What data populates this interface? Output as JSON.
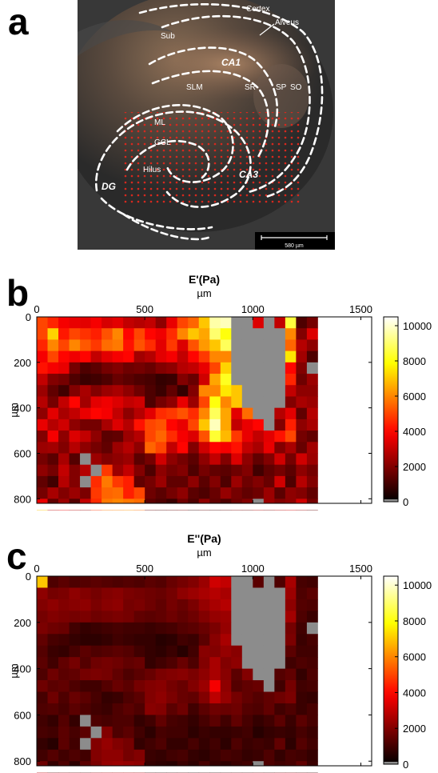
{
  "panel_a": {
    "letter": "a",
    "labels": {
      "cortex": "Cortex",
      "alveus": "Alveus",
      "sub": "Sub",
      "ca1": "CA1",
      "slm": "SLM",
      "sr": "SR",
      "sp": "SP",
      "so": "SO",
      "ml": "ML",
      "gcl": "GCL",
      "hilus": "Hilus",
      "dg": "DG",
      "ca3": "CA3"
    },
    "scale_bar": "580 µm",
    "colors": {
      "outline": "#ffffff",
      "grid_points": "#d8281e"
    }
  },
  "panel_b": {
    "letter": "b",
    "title": "E'(Pa)",
    "x_unit": "µm",
    "y_unit": "µm",
    "x_ticks": [
      "0",
      "500",
      "1000",
      "1500"
    ],
    "y_ticks": [
      "0",
      "200",
      "400",
      "600",
      "800"
    ],
    "colorbar_ticks": [
      "10000",
      "8000",
      "6000",
      "4000",
      "2000",
      "0"
    ]
  },
  "panel_c": {
    "letter": "c",
    "title": "E''(Pa)",
    "x_unit": "µm",
    "y_unit": "µm",
    "x_ticks": [
      "0",
      "500",
      "1000",
      "1500"
    ],
    "y_ticks": [
      "0",
      "200",
      "400",
      "600",
      "800"
    ],
    "colorbar_ticks": [
      "10000",
      "8000",
      "6000",
      "4000",
      "2000",
      "0"
    ]
  },
  "chart_data": [
    {
      "type": "heatmap",
      "title": "E'(Pa)",
      "xlabel": "µm",
      "ylabel": "µm",
      "xlim": [
        0,
        1550
      ],
      "ylim": [
        820,
        0
      ],
      "clim": [
        0,
        10500
      ],
      "colormap": "hot",
      "missing_color": "#8c8c8c",
      "x_step": 50,
      "y_step": 50,
      "missing_value": -1,
      "values": [
        [
          5000,
          4500,
          3800,
          3600,
          3500,
          3800,
          3300,
          3500,
          3000,
          2800,
          3000,
          2200,
          3600,
          5000,
          5500,
          7000,
          9600,
          9800,
          -1,
          -1,
          3400,
          -1,
          3000,
          8500,
          1200,
          1800
        ],
        [
          5000,
          7200,
          4300,
          5000,
          4700,
          4400,
          5200,
          6000,
          4000,
          5000,
          4000,
          3700,
          4600,
          6000,
          7000,
          6500,
          9000,
          8000,
          -1,
          -1,
          -1,
          -1,
          -1,
          6000,
          2000,
          3400
        ],
        [
          4500,
          6000,
          5000,
          6000,
          5300,
          4800,
          5600,
          5800,
          4200,
          5200,
          4600,
          3500,
          4800,
          3400,
          5200,
          6300,
          7000,
          8800,
          -1,
          -1,
          -1,
          -1,
          -1,
          5500,
          2800,
          2200
        ],
        [
          3800,
          5000,
          4000,
          3700,
          4000,
          3000,
          3500,
          3800,
          4000,
          2500,
          2800,
          3500,
          3800,
          3000,
          4000,
          4800,
          6000,
          6000,
          -1,
          -1,
          -1,
          -1,
          -1,
          7500,
          2500,
          1200
        ],
        [
          4200,
          3800,
          3600,
          1800,
          1200,
          1400,
          1800,
          2000,
          1700,
          1800,
          1600,
          2000,
          2200,
          2800,
          3000,
          3600,
          5000,
          7200,
          -1,
          -1,
          -1,
          -1,
          -1,
          4000,
          2000,
          -1
        ],
        [
          3000,
          2000,
          1800,
          1200,
          900,
          1000,
          1200,
          1600,
          1400,
          1200,
          1100,
          800,
          900,
          2000,
          1600,
          3200,
          6500,
          8200,
          -1,
          -1,
          -1,
          -1,
          -1,
          4500,
          1700,
          2400
        ],
        [
          2400,
          1500,
          1000,
          2000,
          2600,
          2000,
          2400,
          2600,
          2200,
          1700,
          1200,
          900,
          1500,
          800,
          2000,
          6000,
          6000,
          7500,
          7000,
          -1,
          -1,
          -1,
          -1,
          3000,
          2200,
          2200
        ],
        [
          2800,
          1800,
          3000,
          4000,
          2500,
          3500,
          3700,
          3400,
          3000,
          3200,
          1200,
          1800,
          2200,
          3600,
          2400,
          5000,
          8000,
          6000,
          7000,
          -1,
          -1,
          -1,
          -1,
          2000,
          2600,
          2400
        ],
        [
          2200,
          3500,
          2600,
          3000,
          3600,
          4000,
          3800,
          3000,
          2200,
          2800,
          3500,
          4600,
          4800,
          5200,
          4600,
          6000,
          8800,
          6500,
          3500,
          5600,
          -1,
          -1,
          2800,
          3500,
          1500,
          2800
        ],
        [
          3600,
          2800,
          3200,
          2200,
          1800,
          1800,
          2600,
          3400,
          2800,
          4200,
          5000,
          5200,
          4000,
          3600,
          5000,
          7000,
          9800,
          6500,
          3000,
          3600,
          4000,
          -1,
          2000,
          4400,
          2200,
          2600
        ],
        [
          2000,
          3800,
          2200,
          3400,
          3000,
          2200,
          1400,
          1500,
          2400,
          2800,
          5000,
          5500,
          4600,
          3800,
          3400,
          5200,
          8400,
          6800,
          4800,
          3600,
          3000,
          3500,
          4200,
          5000,
          1800,
          1500
        ],
        [
          2400,
          2500,
          2000,
          2800,
          2200,
          1800,
          1500,
          2400,
          2800,
          2200,
          5500,
          5000,
          3000,
          4000,
          2000,
          3200,
          4000,
          3800,
          4200,
          3000,
          2600,
          3600,
          2000,
          2600,
          1600,
          2500
        ],
        [
          1800,
          1400,
          2600,
          1300,
          -1,
          2400,
          2000,
          2200,
          2400,
          1400,
          1800,
          3200,
          2200,
          1800,
          1400,
          2200,
          3000,
          2000,
          3400,
          2200,
          1500,
          2000,
          3200,
          1800,
          3200,
          2400
        ],
        [
          2200,
          1800,
          3000,
          2000,
          2800,
          -1,
          4800,
          2400,
          3000,
          2000,
          1200,
          2200,
          1800,
          2000,
          1200,
          1800,
          1500,
          1400,
          1700,
          2000,
          1000,
          1500,
          1800,
          1400,
          2200,
          1800
        ],
        [
          1500,
          1000,
          2800,
          2000,
          -1,
          4600,
          5800,
          4800,
          4400,
          1500,
          1800,
          2400,
          1500,
          1500,
          2200,
          1400,
          2000,
          1200,
          2400,
          1700,
          2000,
          1600,
          3200,
          1200,
          2800,
          2000
        ],
        [
          1800,
          2600,
          2000,
          2400,
          1900,
          4800,
          5500,
          5600,
          4400,
          5000,
          1700,
          1400,
          1800,
          2200,
          1400,
          1200,
          1600,
          2300,
          1800,
          1500,
          1700,
          2400,
          1400,
          2200,
          2000,
          1500
        ],
        [
          3600,
          1500,
          2400,
          1300,
          3000,
          4600,
          5800,
          6000,
          5800,
          5600,
          1400,
          1200,
          900,
          1700,
          1200,
          2200,
          1500,
          1200,
          1700,
          2000,
          -1,
          2400,
          2000,
          2200,
          3200,
          1800
        ],
        [
          7000,
          3000,
          3600,
          2800,
          2400,
          4800,
          5800,
          6000,
          6200,
          5600,
          1600,
          1200,
          1500,
          1800,
          800,
          1500,
          1000,
          1400,
          1900,
          1700,
          2600,
          2000,
          2800,
          3200,
          2400,
          1600
        ],
        [
          9000,
          5200,
          6000,
          6200,
          3200,
          4200,
          3800,
          3700,
          3700,
          3500,
          2000,
          2200,
          1200,
          2200,
          1400,
          1600,
          -1,
          2500,
          3300,
          2800,
          3500,
          2300,
          3600,
          3500,
          2400,
          -1
        ]
      ]
    },
    {
      "type": "heatmap",
      "title": "E''(Pa)",
      "xlabel": "µm",
      "ylabel": "µm",
      "xlim": [
        0,
        1550
      ],
      "ylim": [
        820,
        0
      ],
      "clim": [
        0,
        10500
      ],
      "colormap": "hot",
      "missing_color": "#8c8c8c",
      "x_step": 50,
      "y_step": 50,
      "missing_value": -1,
      "values": [
        [
          7000,
          1200,
          1400,
          1200,
          1300,
          1400,
          1300,
          1200,
          1300,
          1200,
          1400,
          1300,
          1600,
          1800,
          2000,
          2400,
          3200,
          3000,
          -1,
          -1,
          1400,
          -1,
          1200,
          2600,
          1100,
          1000
        ],
        [
          2200,
          1800,
          1900,
          2200,
          2000,
          1800,
          2000,
          2100,
          1900,
          1800,
          1700,
          1600,
          1800,
          2200,
          2400,
          2600,
          2800,
          2600,
          -1,
          -1,
          -1,
          -1,
          -1,
          2400,
          1200,
          1400
        ],
        [
          2000,
          2200,
          2000,
          2100,
          2200,
          1900,
          2100,
          2200,
          1800,
          1900,
          1700,
          1500,
          1800,
          1600,
          1900,
          2300,
          2600,
          2800,
          -1,
          -1,
          -1,
          -1,
          -1,
          2200,
          1300,
          1200
        ],
        [
          1800,
          2000,
          1900,
          1800,
          1900,
          1700,
          1800,
          1900,
          1800,
          1500,
          1400,
          1500,
          1700,
          1500,
          1700,
          2000,
          2300,
          2400,
          -1,
          -1,
          -1,
          -1,
          -1,
          2500,
          1200,
          900
        ],
        [
          1900,
          1700,
          1600,
          1000,
          800,
          900,
          1000,
          1100,
          1000,
          1000,
          900,
          1000,
          1100,
          1300,
          1400,
          1600,
          1900,
          2300,
          -1,
          -1,
          -1,
          -1,
          -1,
          1800,
          1000,
          -1
        ],
        [
          1500,
          1100,
          1000,
          800,
          700,
          700,
          800,
          1000,
          900,
          800,
          800,
          600,
          700,
          1000,
          900,
          1400,
          2100,
          2600,
          -1,
          -1,
          -1,
          -1,
          -1,
          1900,
          900,
          1100
        ],
        [
          1300,
          900,
          800,
          1100,
          1400,
          1200,
          1300,
          1400,
          1300,
          1000,
          800,
          700,
          900,
          600,
          1000,
          2100,
          2000,
          2300,
          2100,
          -1,
          -1,
          -1,
          -1,
          1400,
          1000,
          1000
        ],
        [
          1400,
          1000,
          1500,
          1800,
          1300,
          1700,
          1800,
          1700,
          1500,
          1600,
          800,
          1000,
          1200,
          1600,
          1200,
          2000,
          2600,
          2000,
          2200,
          -1,
          -1,
          -1,
          -1,
          1000,
          1200,
          1100
        ],
        [
          1200,
          1700,
          1400,
          1500,
          1800,
          1900,
          1800,
          1500,
          1200,
          1400,
          1600,
          1900,
          2000,
          2100,
          1900,
          2200,
          2600,
          2100,
          1400,
          2000,
          -1,
          -1,
          1300,
          1500,
          800,
          1200
        ],
        [
          1700,
          1400,
          1500,
          1200,
          1000,
          1000,
          1300,
          1600,
          1400,
          1800,
          2000,
          2100,
          1800,
          1600,
          2000,
          2400,
          3800,
          2200,
          1300,
          1500,
          1600,
          -1,
          1000,
          1800,
          1000,
          1100
        ],
        [
          1100,
          1700,
          1200,
          1600,
          1400,
          1100,
          800,
          900,
          1200,
          1400,
          2000,
          2200,
          1900,
          1600,
          1500,
          2000,
          2900,
          2300,
          1800,
          1500,
          1300,
          1500,
          1700,
          1900,
          900,
          800
        ],
        [
          1200,
          1300,
          1100,
          1400,
          1200,
          1000,
          900,
          1200,
          1400,
          1200,
          2100,
          2000,
          1400,
          1700,
          1000,
          1400,
          1700,
          1600,
          1700,
          1300,
          1200,
          1500,
          1000,
          1200,
          900,
          1100
        ],
        [
          1000,
          800,
          1300,
          800,
          -1,
          1200,
          1100,
          1200,
          1200,
          800,
          1000,
          1500,
          1100,
          1000,
          800,
          1100,
          1400,
          1000,
          1500,
          1100,
          800,
          1000,
          1400,
          900,
          1400,
          1100
        ],
        [
          1100,
          1000,
          1400,
          1100,
          1400,
          -1,
          2000,
          1200,
          1400,
          1000,
          700,
          1100,
          1000,
          1000,
          700,
          900,
          800,
          800,
          900,
          1000,
          600,
          800,
          900,
          800,
          1100,
          900
        ],
        [
          800,
          600,
          1400,
          1000,
          -1,
          2000,
          2300,
          2000,
          1800,
          800,
          1000,
          1200,
          800,
          800,
          1100,
          800,
          1000,
          700,
          1200,
          900,
          1000,
          900,
          1500,
          700,
          1300,
          1000
        ],
        [
          1000,
          1300,
          1000,
          1200,
          1000,
          2000,
          2200,
          2200,
          1800,
          2000,
          900,
          800,
          1000,
          1100,
          800,
          700,
          900,
          1100,
          1000,
          800,
          900,
          1200,
          800,
          1100,
          1000,
          800
        ],
        [
          1700,
          800,
          1200,
          700,
          1400,
          1900,
          2300,
          2400,
          2300,
          2200,
          800,
          700,
          600,
          900,
          700,
          1100,
          800,
          700,
          900,
          1000,
          -1,
          1200,
          1000,
          1100,
          1500,
          900
        ],
        [
          2800,
          1400,
          1700,
          1400,
          1200,
          2000,
          2300,
          2400,
          2400,
          2200,
          900,
          700,
          800,
          1000,
          500,
          800,
          600,
          800,
          1000,
          900,
          1300,
          1000,
          1400,
          1500,
          1200,
          900
        ],
        [
          3200,
          2200,
          2400,
          2500,
          1500,
          1800,
          1700,
          1600,
          1600,
          1500,
          1000,
          1100,
          700,
          1100,
          800,
          900,
          -1,
          1200,
          1500,
          1300,
          1600,
          1200,
          1600,
          1600,
          1200,
          -1
        ]
      ]
    }
  ]
}
